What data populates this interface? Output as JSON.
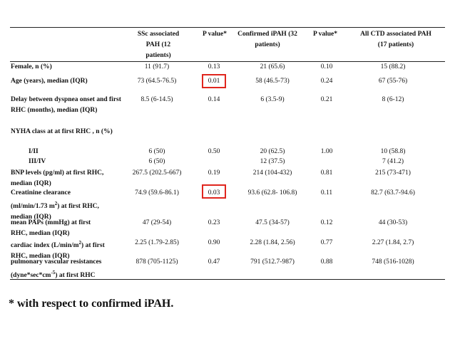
{
  "headers": {
    "col1": "SSc associated PAH (12 patients)",
    "col2": "P value*",
    "col3": "Confirmed iPAH (32 patients)",
    "col4": "P value*",
    "col5": "All CTD associated PAH (17 patients)"
  },
  "rows": [
    {
      "label": "Female, n (%)",
      "v1": "11 (91.7)",
      "p1": "0.13",
      "v3": "21 (65.6)",
      "p2": "0.10",
      "v5": "15 (88.2)"
    },
    {
      "label": "Age (years), median (IQR)",
      "v1": "73 (64.5-76.5)",
      "p1": "0.01",
      "v3": "58 (46.5-73)",
      "p2": "0.24",
      "v5": "67 (55-76)"
    },
    {
      "label": "Delay between dyspnea onset and first RHC (months), median (IQR)",
      "v1": "8.5 (6-14.5)",
      "p1": "0.14",
      "v3": "6 (3.5-9)",
      "p2": "0.21",
      "v5": "8 (6-12)"
    },
    {
      "label": "NYHA class at at first RHC , n (%)"
    },
    {
      "label": "I/II",
      "v1": "6 (50)",
      "p1": "0.50",
      "v3": "20 (62.5)",
      "p2": "1.00",
      "v5": "10 (58.8)"
    },
    {
      "label": "III/IV",
      "v1": "6 (50)",
      "v3": "12 (37.5)",
      "v5": "7 (41.2)"
    },
    {
      "label": "BNP levels (pg/ml) at first RHC, median (IQR)",
      "v1": "267.5 (202.5-667)",
      "p1": "0.19",
      "v3": "214 (104-432)",
      "p2": "0.81",
      "v5": "215 (73-471)"
    },
    {
      "label_a": "Creatinine clearance",
      "label_b": "(ml/min/1.73 m",
      "label_sup": "2",
      "label_c": ") at first RHC,",
      "label_d": "median (IQR)",
      "v1": "74.9 (59.6-86.1)",
      "p1": "0.03",
      "v3": "93.6 (62.8- 106.8)",
      "p2": "0.11",
      "v5": "82.7 (63.7-94.6)"
    },
    {
      "label_a": "mean PAPs  (mmHg) at first",
      "label_b": "RHC, median (IQR)",
      "v1": "47 (29-54)",
      "p1": "0.23",
      "v3": "47.5 (34-57)",
      "p2": "0.12",
      "v5": "44 (30-53)"
    },
    {
      "label_a": "cardiac index (L/min/m",
      "label_sup": "2",
      "label_b": ") at first",
      "label_c": "RHC, median (IQR)",
      "v1": "2.25 (1.79-2.85)",
      "p1": "0.90",
      "v3": "2.28 (1.84, 2.56)",
      "p2": "0.77",
      "v5": "2.27 (1.84, 2.7)"
    },
    {
      "label_a": "pulmonary vascular resistances",
      "label_b": "(dyne*sec*cm",
      "label_sup": "-5",
      "label_c": ") at first RHC",
      "v1": "878 (705-1125)",
      "p1": "0.47",
      "v3": "791 (512.7-987)",
      "p2": "0.88",
      "v5": "748 (516-1028)"
    }
  ],
  "footnote": "* with respect to confirmed iPAH.",
  "highlight_color": "#e0261e"
}
